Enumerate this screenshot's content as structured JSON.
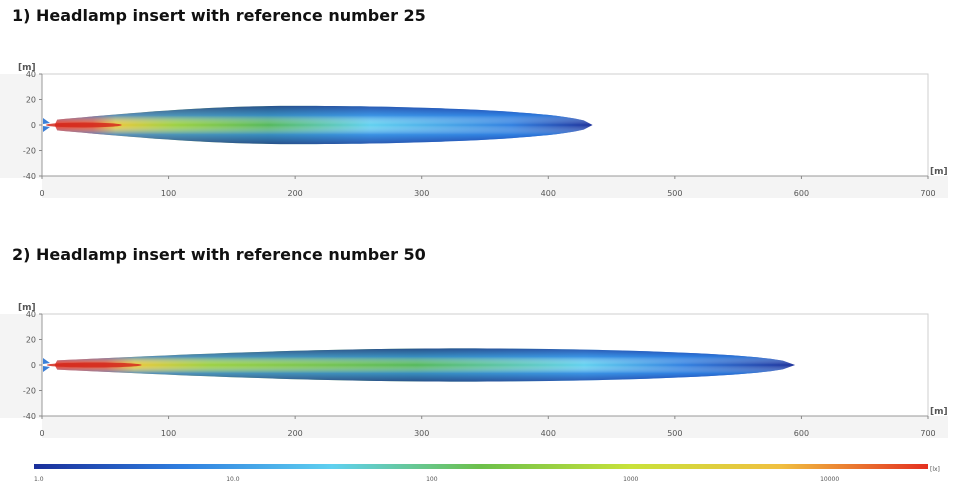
{
  "panels": [
    {
      "title": "1) Headlamp insert with reference number 25",
      "chart_data": {
        "type": "heatmap",
        "xlabel": "[m]",
        "ylabel": "[m]",
        "xlim": [
          0,
          700
        ],
        "ylim": [
          -40,
          40
        ],
        "x_ticks": [
          "0",
          "100",
          "200",
          "300",
          "400",
          "500",
          "600",
          "700"
        ],
        "y_ticks": [
          "40",
          "20",
          "0",
          "-20",
          "-40"
        ],
        "beam_reach": 435,
        "beam_max_halfwidth": 15,
        "beam_max_at": 200,
        "hotspot_end": 60,
        "grid": false
      }
    },
    {
      "title": "2) Headlamp insert with reference number 50",
      "chart_data": {
        "type": "heatmap",
        "xlabel": "[m]",
        "ylabel": "[m]",
        "xlim": [
          0,
          700
        ],
        "ylim": [
          -40,
          40
        ],
        "x_ticks": [
          "0",
          "100",
          "200",
          "300",
          "400",
          "500",
          "600",
          "700"
        ],
        "y_ticks": [
          "40",
          "20",
          "0",
          "-20",
          "-40"
        ],
        "beam_reach": 595,
        "beam_max_halfwidth": 13,
        "beam_max_at": 330,
        "hotspot_end": 75,
        "grid": false
      }
    }
  ],
  "colorscale": {
    "unit": "[lx]",
    "ticks": [
      "1.0",
      "10.0",
      "100",
      "1000",
      "10000"
    ],
    "colors": [
      "#1a2f9a",
      "#2f7fe0",
      "#5fd0f0",
      "#6cc04a",
      "#c8e23a",
      "#f0c040",
      "#e43020"
    ]
  }
}
